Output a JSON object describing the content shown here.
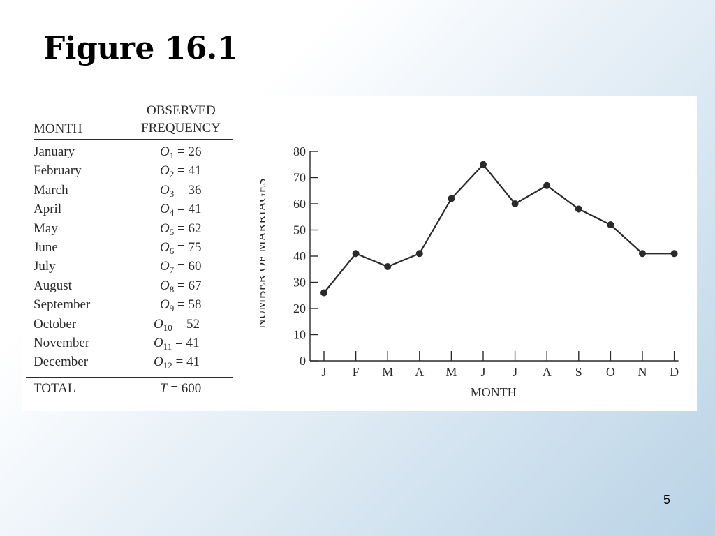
{
  "slide": {
    "title": "Figure 16.1",
    "page_number": "5"
  },
  "table": {
    "header_month": "MONTH",
    "header_observed_line1": "OBSERVED",
    "header_observed_line2": "FREQUENCY",
    "rows": [
      {
        "month": "January",
        "sym": "O",
        "sub": "1",
        "eq": " = 26"
      },
      {
        "month": "February",
        "sym": "O",
        "sub": "2",
        "eq": " = 41"
      },
      {
        "month": "March",
        "sym": "O",
        "sub": "3",
        "eq": " = 36"
      },
      {
        "month": "April",
        "sym": "O",
        "sub": "4",
        "eq": " = 41"
      },
      {
        "month": "May",
        "sym": "O",
        "sub": "5",
        "eq": " = 62"
      },
      {
        "month": "June",
        "sym": "O",
        "sub": "6",
        "eq": " = 75"
      },
      {
        "month": "July",
        "sym": "O",
        "sub": "7",
        "eq": " = 60"
      },
      {
        "month": "August",
        "sym": "O",
        "sub": "8",
        "eq": " = 67"
      },
      {
        "month": "September",
        "sym": "O",
        "sub": "9",
        "eq": " = 58"
      },
      {
        "month": "October",
        "sym": "O",
        "sub": "10",
        "eq": " = 52"
      },
      {
        "month": "November",
        "sym": "O",
        "sub": "11",
        "eq": " = 41"
      },
      {
        "month": "December",
        "sym": "O",
        "sub": "12",
        "eq": " = 41"
      }
    ],
    "total_label": "TOTAL",
    "total_sym": "T",
    "total_eq": " = 600"
  },
  "chart_data": {
    "type": "line",
    "categories": [
      "J",
      "F",
      "M",
      "A",
      "M",
      "J",
      "J",
      "A",
      "S",
      "O",
      "N",
      "D"
    ],
    "series": [
      {
        "values": [
          26,
          41,
          36,
          41,
          62,
          75,
          60,
          67,
          58,
          52,
          41,
          41
        ]
      }
    ],
    "xlabel": "MONTH",
    "ylabel": "NUMBER OF MARRIAGES",
    "ylim": [
      0,
      80
    ],
    "yticks": [
      0,
      10,
      20,
      30,
      40,
      50,
      60,
      70,
      80
    ],
    "grid": false,
    "marker": "filled-circle",
    "line_color": "#2a2a2a"
  }
}
